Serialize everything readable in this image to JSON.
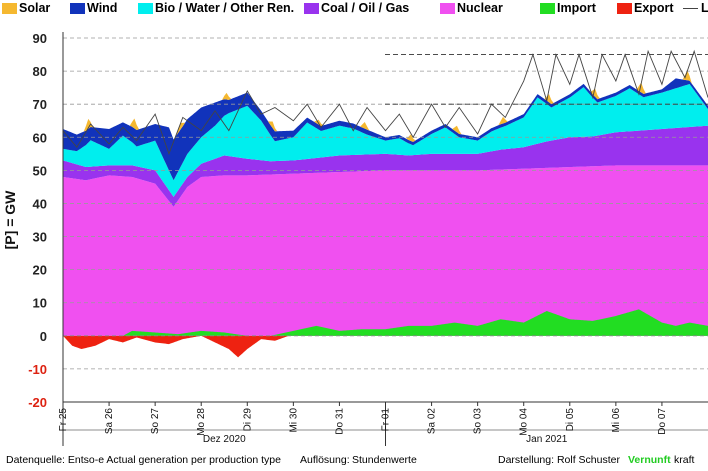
{
  "chart_data": {
    "type": "area",
    "stacked": true,
    "ylabel": "[P] = GW",
    "ylim": [
      -20,
      90
    ],
    "yticks": [
      90,
      80,
      70,
      60,
      50,
      40,
      30,
      20,
      10,
      0,
      -10,
      -20
    ],
    "reference_lines": [
      85,
      70
    ],
    "grid": "horizontal dashed",
    "legend_position": "top",
    "x_start_day": "Fr 25",
    "x_tick_labels": [
      "Fr 25",
      "Sa 26",
      "So 27",
      "Mo 28",
      "Di 29",
      "Mi 30",
      "Do 31",
      "Fr 01",
      "Sa 02",
      "So 03",
      "Mo 04",
      "Di 05",
      "Mi 06",
      "Do 07"
    ],
    "month_labels": [
      "Dez 2020",
      "Jan 2021"
    ],
    "series": [
      {
        "name": "Nuclear",
        "color": "#f050f0",
        "points": [
          [
            0,
            48
          ],
          [
            0.5,
            47
          ],
          [
            1,
            48.5
          ],
          [
            1.5,
            48
          ],
          [
            2,
            46
          ],
          [
            2.4,
            39
          ],
          [
            2.7,
            45
          ],
          [
            3,
            48
          ],
          [
            3.5,
            48.5
          ],
          [
            4,
            48.5
          ],
          [
            5,
            49
          ],
          [
            6,
            49.5
          ],
          [
            7,
            50
          ],
          [
            8,
            50
          ],
          [
            9,
            50
          ],
          [
            10,
            50.5
          ],
          [
            11,
            51
          ],
          [
            12,
            51.5
          ],
          [
            13,
            51.5
          ],
          [
            14,
            51.5
          ]
        ]
      },
      {
        "name": "Coal / Oil / Gas",
        "color": "#9933ee",
        "points": [
          [
            0,
            5
          ],
          [
            0.5,
            4
          ],
          [
            1,
            3
          ],
          [
            1.5,
            3.5
          ],
          [
            2,
            4
          ],
          [
            2.4,
            3
          ],
          [
            2.7,
            3
          ],
          [
            3,
            4
          ],
          [
            3.5,
            6
          ],
          [
            4,
            5
          ],
          [
            4.5,
            4
          ],
          [
            5,
            4
          ],
          [
            5.5,
            4.5
          ],
          [
            6,
            5
          ],
          [
            6.5,
            5
          ],
          [
            7,
            5
          ],
          [
            7.5,
            4.5
          ],
          [
            8,
            5
          ],
          [
            8.5,
            5
          ],
          [
            9,
            5
          ],
          [
            9.5,
            6
          ],
          [
            10,
            6.5
          ],
          [
            10.5,
            8
          ],
          [
            11,
            9
          ],
          [
            11.5,
            9
          ],
          [
            12,
            10
          ],
          [
            12.5,
            10.5
          ],
          [
            13,
            11
          ],
          [
            13.5,
            11.5
          ],
          [
            14,
            12
          ]
        ]
      },
      {
        "name": "Bio / Water / Other Ren.",
        "color": "#00eeee",
        "points": [
          [
            0,
            3.5
          ],
          [
            0.3,
            4
          ],
          [
            0.6,
            8
          ],
          [
            1,
            5
          ],
          [
            1.3,
            9
          ],
          [
            1.6,
            6
          ],
          [
            2,
            9
          ],
          [
            2.4,
            5
          ],
          [
            2.7,
            7
          ],
          [
            3,
            8
          ],
          [
            3.3,
            10
          ],
          [
            3.6,
            13
          ],
          [
            4,
            16
          ],
          [
            4.3,
            12
          ],
          [
            4.6,
            6
          ],
          [
            5,
            7
          ],
          [
            5.3,
            11
          ],
          [
            5.6,
            8
          ],
          [
            6,
            9
          ],
          [
            6.3,
            8
          ],
          [
            6.6,
            6
          ],
          [
            7,
            4
          ],
          [
            7.3,
            5
          ],
          [
            7.6,
            3
          ],
          [
            8,
            6
          ],
          [
            8.3,
            8
          ],
          [
            8.6,
            5
          ],
          [
            9,
            4
          ],
          [
            9.3,
            6
          ],
          [
            9.6,
            7
          ],
          [
            10,
            9
          ],
          [
            10.3,
            14
          ],
          [
            10.6,
            10
          ],
          [
            11,
            12
          ],
          [
            11.3,
            15
          ],
          [
            11.6,
            10
          ],
          [
            12,
            11
          ],
          [
            12.3,
            13
          ],
          [
            12.6,
            10
          ],
          [
            13,
            11
          ],
          [
            13.3,
            12
          ],
          [
            13.6,
            13
          ],
          [
            14,
            5
          ]
        ]
      },
      {
        "name": "Wind",
        "color": "#1133bb",
        "points": [
          [
            0,
            6
          ],
          [
            0.3,
            5
          ],
          [
            0.6,
            4
          ],
          [
            1,
            6
          ],
          [
            1.3,
            4
          ],
          [
            1.6,
            5
          ],
          [
            2,
            5
          ],
          [
            2.3,
            13
          ],
          [
            2.6,
            11
          ],
          [
            3,
            9
          ],
          [
            3.3,
            7
          ],
          [
            3.6,
            4
          ],
          [
            4,
            4
          ],
          [
            4.3,
            3
          ],
          [
            4.6,
            3
          ],
          [
            5,
            2
          ],
          [
            5.3,
            1.5
          ],
          [
            5.6,
            1.5
          ],
          [
            6,
            1.5
          ],
          [
            6.3,
            1.5
          ],
          [
            6.6,
            1.5
          ],
          [
            7,
            1
          ],
          [
            7.5,
            1
          ],
          [
            8,
            1
          ],
          [
            8.5,
            1
          ],
          [
            9,
            1
          ],
          [
            9.5,
            1
          ],
          [
            10,
            1
          ],
          [
            10.5,
            1
          ],
          [
            11,
            1
          ],
          [
            11.5,
            1
          ],
          [
            12,
            1
          ],
          [
            12.5,
            1
          ],
          [
            13,
            1
          ],
          [
            13.3,
            3
          ],
          [
            13.6,
            1
          ],
          [
            14,
            1
          ]
        ]
      },
      {
        "name": "Solar",
        "color": "#f5b830",
        "points": [
          [
            0,
            0
          ],
          [
            0.45,
            0
          ],
          [
            0.55,
            3
          ],
          [
            0.65,
            0
          ],
          [
            1.45,
            0
          ],
          [
            1.55,
            3
          ],
          [
            1.65,
            0
          ],
          [
            2.45,
            0
          ],
          [
            2.55,
            2
          ],
          [
            2.65,
            0
          ],
          [
            3.45,
            0
          ],
          [
            3.55,
            2
          ],
          [
            3.65,
            0
          ],
          [
            4.45,
            0
          ],
          [
            4.55,
            2
          ],
          [
            4.65,
            0
          ],
          [
            5.45,
            0
          ],
          [
            5.55,
            1.5
          ],
          [
            5.65,
            0
          ],
          [
            6.45,
            0
          ],
          [
            6.55,
            2
          ],
          [
            6.65,
            0
          ],
          [
            7.45,
            0
          ],
          [
            7.55,
            2
          ],
          [
            7.65,
            0
          ],
          [
            8.45,
            0
          ],
          [
            8.55,
            2
          ],
          [
            8.65,
            0
          ],
          [
            9.45,
            0
          ],
          [
            9.55,
            2
          ],
          [
            9.65,
            0
          ],
          [
            10.45,
            0
          ],
          [
            10.55,
            2.5
          ],
          [
            10.65,
            0
          ],
          [
            11.45,
            0
          ],
          [
            11.55,
            2.5
          ],
          [
            11.65,
            0
          ],
          [
            12.45,
            0
          ],
          [
            12.55,
            3
          ],
          [
            12.65,
            0
          ],
          [
            13.45,
            0
          ],
          [
            13.55,
            3
          ],
          [
            13.65,
            0
          ],
          [
            14,
            0
          ]
        ]
      },
      {
        "name": "Import",
        "color": "#22dd22",
        "points": [
          [
            0,
            0
          ],
          [
            1.3,
            0
          ],
          [
            1.5,
            1.5
          ],
          [
            2,
            1
          ],
          [
            2.5,
            0.5
          ],
          [
            3,
            1.5
          ],
          [
            3.5,
            1
          ],
          [
            4,
            0
          ],
          [
            4.5,
            0
          ],
          [
            5,
            1.5
          ],
          [
            5.5,
            3
          ],
          [
            6,
            1.5
          ],
          [
            6.5,
            2
          ],
          [
            7,
            2
          ],
          [
            7.5,
            3
          ],
          [
            8,
            3
          ],
          [
            8.5,
            4
          ],
          [
            9,
            3
          ],
          [
            9.5,
            5
          ],
          [
            10,
            4
          ],
          [
            10.5,
            7.5
          ],
          [
            11,
            5
          ],
          [
            11.5,
            4.5
          ],
          [
            12,
            6
          ],
          [
            12.5,
            8
          ],
          [
            13,
            4
          ],
          [
            13.3,
            3
          ],
          [
            13.6,
            4
          ],
          [
            14,
            3
          ]
        ]
      },
      {
        "name": "Export",
        "color": "#ee2211",
        "points": [
          [
            0,
            0
          ],
          [
            0.2,
            -3
          ],
          [
            0.4,
            -4
          ],
          [
            0.7,
            -3
          ],
          [
            1,
            -1
          ],
          [
            1.3,
            -2
          ],
          [
            1.6,
            -0.5
          ],
          [
            2,
            -2
          ],
          [
            2.3,
            -2.5
          ],
          [
            2.6,
            -1
          ],
          [
            3,
            0
          ],
          [
            3.3,
            -2
          ],
          [
            3.6,
            -4
          ],
          [
            3.8,
            -6.5
          ],
          [
            4,
            -4
          ],
          [
            4.3,
            -1
          ],
          [
            4.6,
            -1.5
          ],
          [
            4.9,
            0
          ],
          [
            14,
            0
          ]
        ]
      }
    ],
    "load": {
      "name": "Load",
      "color": "#444444",
      "points": [
        [
          0,
          62
        ],
        [
          0.3,
          57
        ],
        [
          0.6,
          64
        ],
        [
          1,
          58
        ],
        [
          1.3,
          63
        ],
        [
          1.6,
          59
        ],
        [
          2,
          67
        ],
        [
          2.3,
          55
        ],
        [
          2.6,
          66
        ],
        [
          3,
          62
        ],
        [
          3.3,
          68
        ],
        [
          3.6,
          62
        ],
        [
          4,
          74
        ],
        [
          4.3,
          67
        ],
        [
          4.6,
          69
        ],
        [
          5,
          65
        ],
        [
          5.3,
          70
        ],
        [
          5.6,
          63
        ],
        [
          6,
          70
        ],
        [
          6.3,
          62
        ],
        [
          6.6,
          69
        ],
        [
          7,
          62
        ],
        [
          7.3,
          67
        ],
        [
          7.6,
          60
        ],
        [
          8,
          70
        ],
        [
          8.3,
          63
        ],
        [
          8.6,
          69
        ],
        [
          9,
          61
        ],
        [
          9.3,
          70
        ],
        [
          9.6,
          66
        ],
        [
          10,
          77
        ],
        [
          10.2,
          85
        ],
        [
          10.5,
          71
        ],
        [
          10.7,
          85
        ],
        [
          11,
          76
        ],
        [
          11.2,
          85
        ],
        [
          11.5,
          72
        ],
        [
          11.7,
          85
        ],
        [
          12,
          77
        ],
        [
          12.2,
          85
        ],
        [
          12.5,
          73
        ],
        [
          12.7,
          86
        ],
        [
          13,
          76
        ],
        [
          13.2,
          86
        ],
        [
          13.5,
          78
        ],
        [
          13.7,
          86
        ],
        [
          14,
          72
        ]
      ]
    }
  },
  "legend": [
    {
      "label": "Solar",
      "color": "#f5b830",
      "kind": "box"
    },
    {
      "label": "Wind",
      "color": "#1133bb",
      "kind": "box"
    },
    {
      "label": "Bio / Water / Other Ren.",
      "color": "#00eeee",
      "kind": "box"
    },
    {
      "label": "Coal / Oil / Gas",
      "color": "#9933ee",
      "kind": "box"
    },
    {
      "label": "Nuclear",
      "color": "#f050f0",
      "kind": "box"
    },
    {
      "label": "Import",
      "color": "#22dd22",
      "kind": "box"
    },
    {
      "label": "Export",
      "color": "#ee2211",
      "kind": "box"
    },
    {
      "label": "Load",
      "color": "#444444",
      "kind": "line"
    }
  ],
  "footer": {
    "source": "Datenquelle: Entso-e  Actual generation per production type",
    "resolution_label": "Auflösung:",
    "resolution_value": "Stundenwerte",
    "author": "Darstellung:  Rolf Schuster",
    "brand_green": "Vernunft",
    "brand_rest": "kraft",
    "brand_color": "#22cc22"
  }
}
